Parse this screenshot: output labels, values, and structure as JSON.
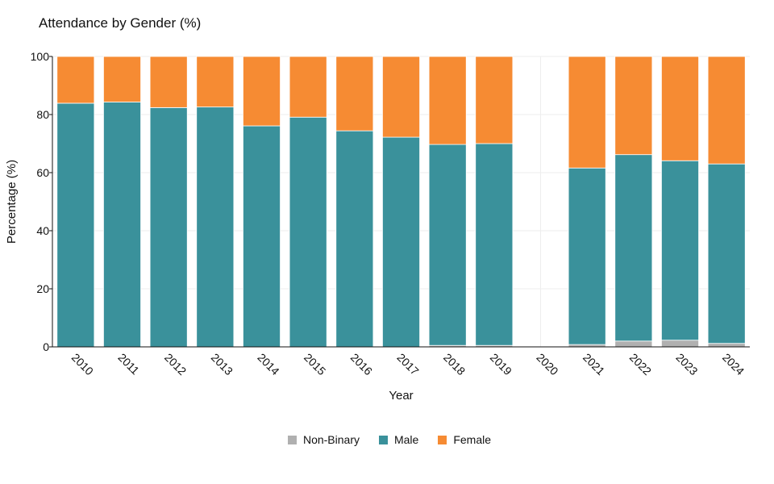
{
  "chart_data": {
    "type": "bar",
    "stacked": true,
    "title": "Attendance by Gender (%)",
    "xlabel": "Year",
    "ylabel": "Percentage (%)",
    "ylim": [
      0,
      100
    ],
    "yticks": [
      "0",
      "20",
      "40",
      "60",
      "80",
      "100"
    ],
    "grid": true,
    "legend_position": "bottom",
    "categories": [
      "2010",
      "2011",
      "2012",
      "2013",
      "2014",
      "2015",
      "2016",
      "2017",
      "2018",
      "2019",
      "2020",
      "2021",
      "2022",
      "2023",
      "2024"
    ],
    "series": [
      {
        "name": "Non-Binary",
        "color": "#b0b0b0",
        "values": [
          0,
          0,
          0,
          0,
          0,
          0,
          0,
          0,
          0.5,
          0.5,
          null,
          0.8,
          2.0,
          2.3,
          1.2
        ]
      },
      {
        "name": "Male",
        "color": "#3a919b",
        "values": [
          83.9,
          84.3,
          82.4,
          82.6,
          76.1,
          79.1,
          74.4,
          72.2,
          69.2,
          69.5,
          null,
          60.8,
          64.2,
          61.8,
          61.8
        ]
      },
      {
        "name": "Female",
        "color": "#f68b33",
        "values": [
          16.1,
          15.7,
          17.6,
          17.4,
          23.9,
          20.9,
          25.6,
          27.8,
          30.3,
          30.0,
          null,
          38.4,
          33.8,
          35.9,
          37.0
        ]
      }
    ]
  }
}
